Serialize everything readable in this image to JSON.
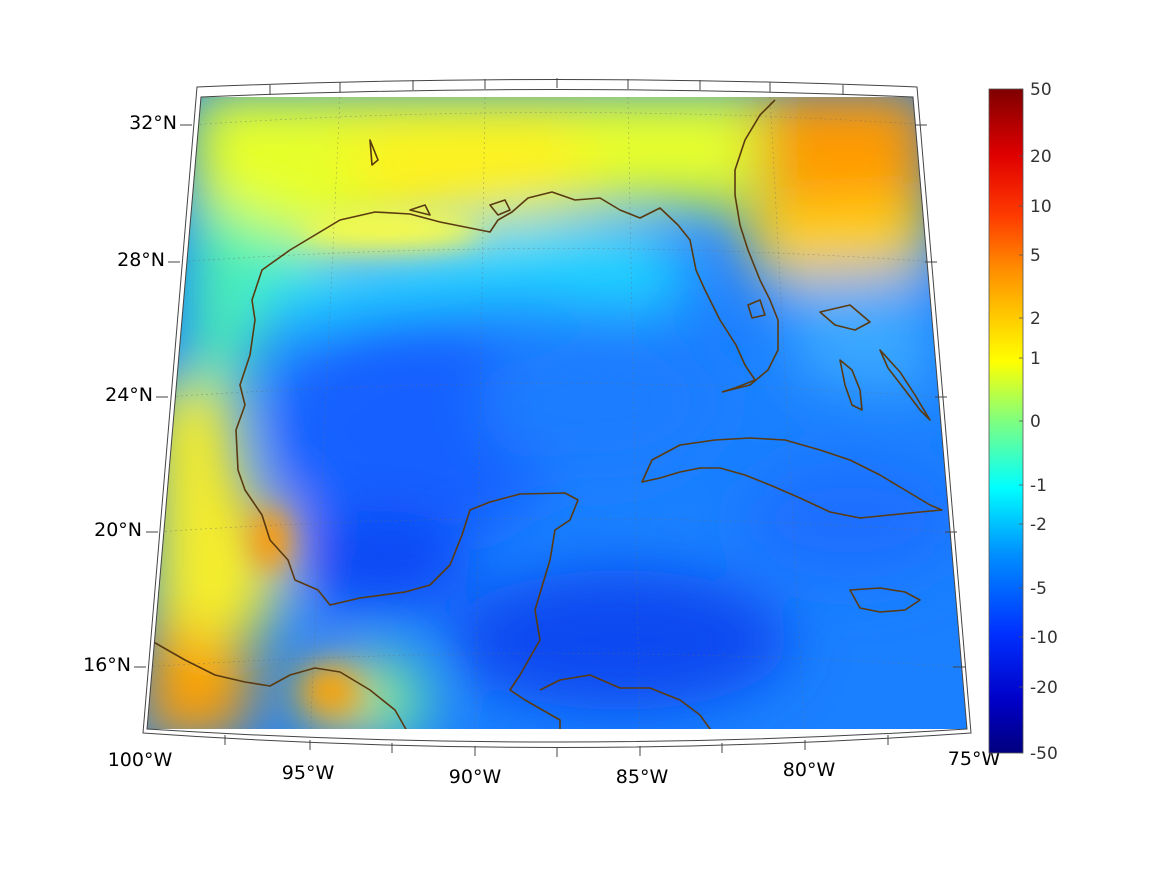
{
  "map": {
    "projection": "lambert-conformal",
    "extent": {
      "lon": [
        -100,
        -75
      ],
      "lat": [
        14,
        33
      ]
    },
    "grid": true,
    "coastline_color": "#5a3a10",
    "colormap": "jet",
    "lat_labels": [
      "32°N",
      "28°N",
      "24°N",
      "20°N",
      "16°N"
    ],
    "lon_labels": [
      "100°W",
      "95°W",
      "90°W",
      "85°W",
      "80°W",
      "75°W"
    ]
  },
  "colorbar": {
    "ticks": [
      "50",
      "20",
      "10",
      "5",
      "2",
      "1",
      "0",
      "-1",
      "-2",
      "-5",
      "-10",
      "-20",
      "-50"
    ]
  }
}
